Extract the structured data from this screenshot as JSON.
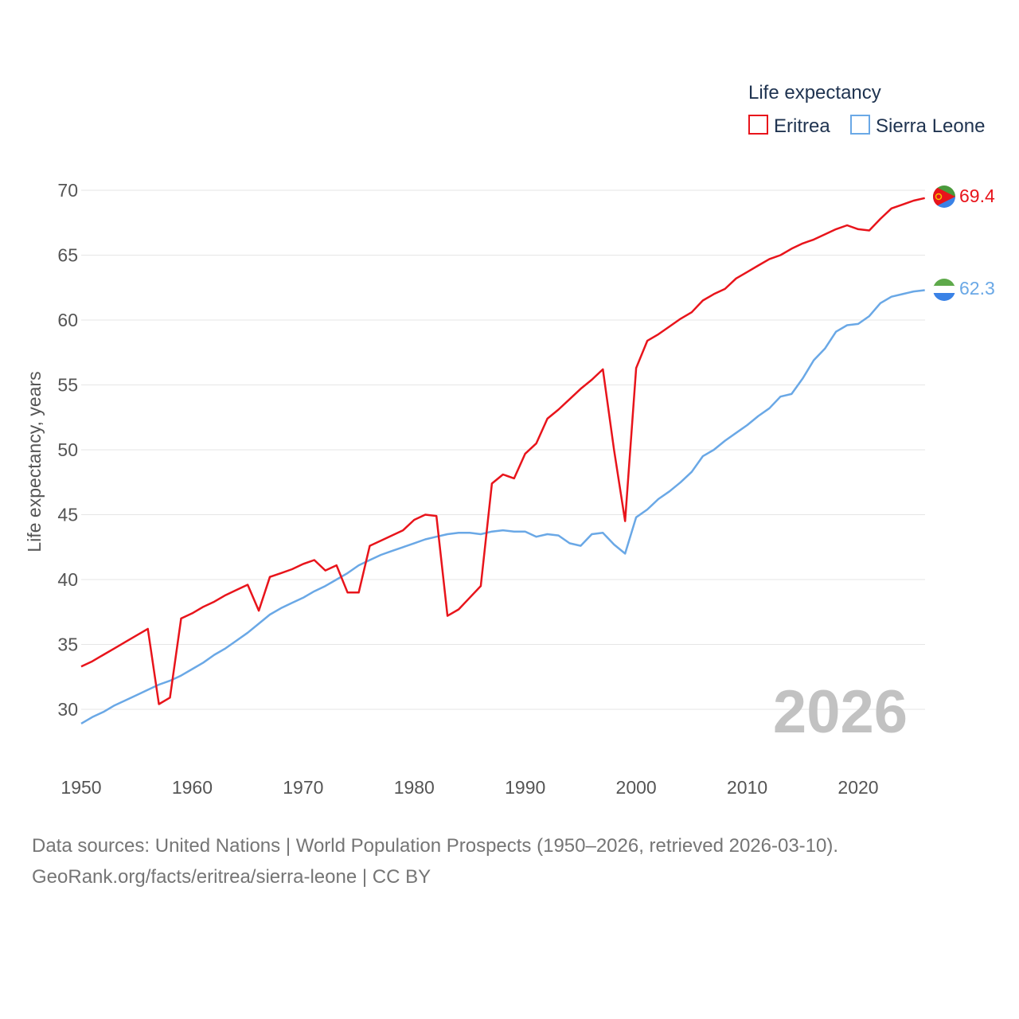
{
  "legend": {
    "title": "Life expectancy",
    "items": [
      {
        "label": "Eritrea",
        "color": "#e8141b"
      },
      {
        "label": "Sierra Leone",
        "color": "#6aa8e6"
      }
    ]
  },
  "year_watermark": "2026",
  "footer": {
    "line1": "Data sources: United Nations | World Population Prospects (1950–2026, retrieved 2026-03-10).",
    "line2": "GeoRank.org/facts/eritrea/sierra-leone | CC BY"
  },
  "chart_data": {
    "type": "line",
    "title": "Life expectancy",
    "xlabel": "",
    "ylabel": "Life expectancy, years",
    "xlim": [
      1950,
      2026
    ],
    "ylim": [
      27,
      72
    ],
    "xticks": [
      1950,
      1960,
      1970,
      1980,
      1990,
      2000,
      2010,
      2020
    ],
    "yticks": [
      30,
      35,
      40,
      45,
      50,
      55,
      60,
      65,
      70
    ],
    "grid": true,
    "legend_position": "top-right",
    "series": [
      {
        "name": "Eritrea",
        "color": "#e8141b",
        "end_label": "69.4",
        "flag": "eritrea-flag",
        "x": [
          1950,
          1951,
          1952,
          1953,
          1954,
          1955,
          1956,
          1957,
          1958,
          1959,
          1960,
          1961,
          1962,
          1963,
          1964,
          1965,
          1966,
          1967,
          1968,
          1969,
          1970,
          1971,
          1972,
          1973,
          1974,
          1975,
          1976,
          1977,
          1978,
          1979,
          1980,
          1981,
          1982,
          1983,
          1984,
          1985,
          1986,
          1987,
          1988,
          1989,
          1990,
          1991,
          1992,
          1993,
          1994,
          1995,
          1996,
          1997,
          1998,
          1999,
          2000,
          2001,
          2002,
          2003,
          2004,
          2005,
          2006,
          2007,
          2008,
          2009,
          2010,
          2011,
          2012,
          2013,
          2014,
          2015,
          2016,
          2017,
          2018,
          2019,
          2020,
          2021,
          2022,
          2023,
          2024,
          2025,
          2026
        ],
        "values": [
          33.3,
          33.7,
          34.2,
          34.7,
          35.2,
          35.7,
          36.2,
          30.4,
          30.9,
          37.0,
          37.4,
          37.9,
          38.3,
          38.8,
          39.2,
          39.6,
          37.6,
          40.2,
          40.5,
          40.8,
          41.2,
          41.5,
          40.7,
          41.1,
          39.0,
          39.0,
          42.6,
          43.0,
          43.4,
          43.8,
          44.6,
          45.0,
          44.9,
          37.2,
          37.7,
          38.6,
          39.5,
          47.4,
          48.1,
          47.8,
          49.7,
          50.5,
          52.4,
          53.1,
          53.9,
          54.7,
          55.4,
          56.2,
          50.0,
          44.5,
          56.3,
          58.4,
          58.9,
          59.5,
          60.1,
          60.6,
          61.5,
          62.0,
          62.4,
          63.2,
          63.7,
          64.2,
          64.7,
          65.0,
          65.5,
          65.9,
          66.2,
          66.6,
          67.0,
          67.3,
          67.0,
          66.9,
          67.8,
          68.6,
          68.9,
          69.2,
          69.4
        ]
      },
      {
        "name": "Sierra Leone",
        "color": "#6aa8e6",
        "end_label": "62.3",
        "flag": "sierra-leone-flag",
        "x": [
          1950,
          1951,
          1952,
          1953,
          1954,
          1955,
          1956,
          1957,
          1958,
          1959,
          1960,
          1961,
          1962,
          1963,
          1964,
          1965,
          1966,
          1967,
          1968,
          1969,
          1970,
          1971,
          1972,
          1973,
          1974,
          1975,
          1976,
          1977,
          1978,
          1979,
          1980,
          1981,
          1982,
          1983,
          1984,
          1985,
          1986,
          1987,
          1988,
          1989,
          1990,
          1991,
          1992,
          1993,
          1994,
          1995,
          1996,
          1997,
          1998,
          1999,
          2000,
          2001,
          2002,
          2003,
          2004,
          2005,
          2006,
          2007,
          2008,
          2009,
          2010,
          2011,
          2012,
          2013,
          2014,
          2015,
          2016,
          2017,
          2018,
          2019,
          2020,
          2021,
          2022,
          2023,
          2024,
          2025,
          2026
        ],
        "values": [
          28.9,
          29.4,
          29.8,
          30.3,
          30.7,
          31.1,
          31.5,
          31.9,
          32.2,
          32.6,
          33.1,
          33.6,
          34.2,
          34.7,
          35.3,
          35.9,
          36.6,
          37.3,
          37.8,
          38.2,
          38.6,
          39.1,
          39.5,
          40.0,
          40.5,
          41.1,
          41.5,
          41.9,
          42.2,
          42.5,
          42.8,
          43.1,
          43.3,
          43.5,
          43.6,
          43.6,
          43.5,
          43.7,
          43.8,
          43.7,
          43.7,
          43.3,
          43.5,
          43.4,
          42.8,
          42.6,
          43.5,
          43.6,
          42.7,
          42.0,
          44.8,
          45.4,
          46.2,
          46.8,
          47.5,
          48.3,
          49.5,
          50.0,
          50.7,
          51.3,
          51.9,
          52.6,
          53.2,
          54.1,
          54.3,
          55.5,
          56.9,
          57.8,
          59.1,
          59.6,
          59.7,
          60.3,
          61.3,
          61.8,
          62.0,
          62.2,
          62.3
        ]
      }
    ]
  }
}
